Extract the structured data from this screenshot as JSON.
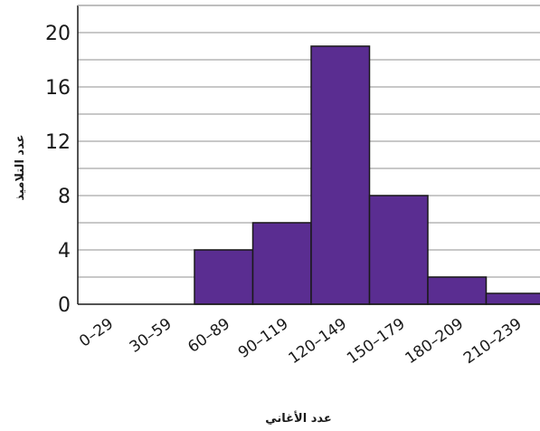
{
  "chart_data": {
    "type": "bar",
    "categories": [
      "0–29",
      "30–59",
      "60–89",
      "90–119",
      "120–149",
      "150–179",
      "180–209",
      "210–239"
    ],
    "values": [
      0,
      0,
      4,
      6,
      19,
      8,
      2,
      0.8
    ],
    "xlabel": "عدد الأغاني",
    "ylabel": "عدد التلاميذ",
    "ylim": [
      0,
      22
    ],
    "yticks": [
      0,
      4,
      8,
      12,
      16,
      20
    ],
    "grid": true,
    "colors": {
      "bar_fill": "#5a2d91",
      "bar_stroke": "#1a1a1a",
      "grid": "#b5b5b5"
    }
  }
}
